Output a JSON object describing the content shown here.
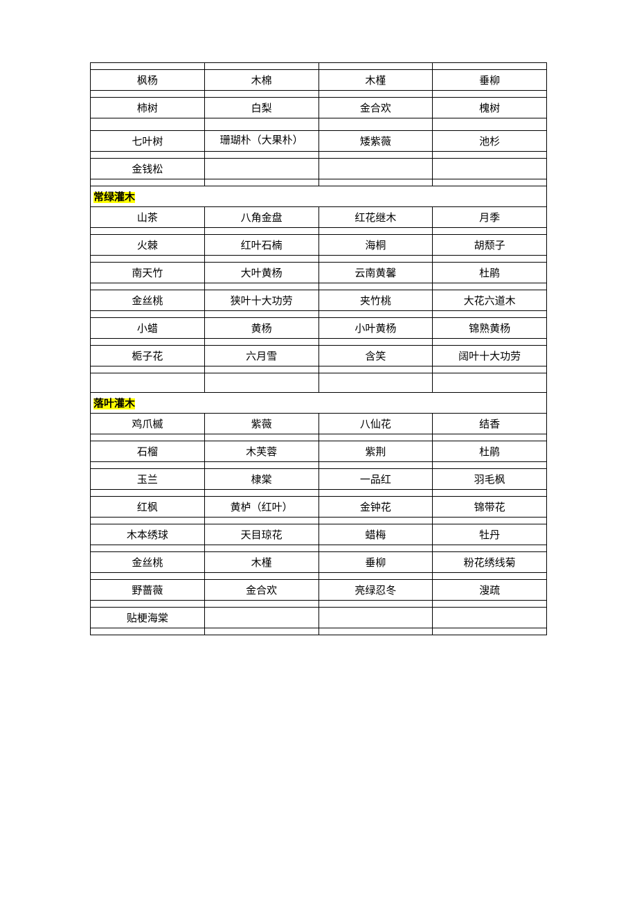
{
  "colors": {
    "border": "#000000",
    "background": "#ffffff",
    "highlight": "#ffff00",
    "text": "#000000"
  },
  "table": {
    "columns": 4,
    "font_size": 15,
    "font_family": "SimSun"
  },
  "sections": [
    {
      "header": null,
      "rows": [
        [
          "枫杨",
          "木棉",
          "木槿",
          "垂柳"
        ],
        [
          "柿树",
          "白梨",
          "金合欢",
          "槐树"
        ],
        [
          "七叶树",
          "珊瑚朴（大果朴）",
          "矮紫薇",
          "池杉"
        ],
        [
          "金钱松",
          "",
          "",
          ""
        ]
      ]
    },
    {
      "header": "常绿灌木",
      "rows": [
        [
          "山茶",
          "八角金盘",
          "红花继木",
          "月季"
        ],
        [
          "火棘",
          "红叶石楠",
          "海桐",
          "胡颓子"
        ],
        [
          "南天竹",
          "大叶黄杨",
          "云南黄馨",
          "杜鹃"
        ],
        [
          "金丝桃",
          "狭叶十大功劳",
          "夹竹桃",
          "大花六道木"
        ],
        [
          "小蜡",
          "黄杨",
          "小叶黄杨",
          "锦熟黄杨"
        ],
        [
          "栀子花",
          "六月雪",
          "含笑",
          "阔叶十大功劳"
        ],
        [
          "",
          "",
          "",
          ""
        ]
      ]
    },
    {
      "header": "落叶灌木",
      "rows": [
        [
          "鸡爪槭",
          "紫薇",
          "八仙花",
          "结香"
        ],
        [
          "石榴",
          "木芙蓉",
          "紫荆",
          "杜鹃"
        ],
        [
          "玉兰",
          "棣棠",
          "一品红",
          "羽毛枫"
        ],
        [
          "红枫",
          "黄栌（红叶）",
          "金钟花",
          "锦带花"
        ],
        [
          "木本绣球",
          "天目琼花",
          "蜡梅",
          "牡丹"
        ],
        [
          "金丝桃",
          "木槿",
          "垂柳",
          "粉花绣线菊"
        ],
        [
          "野蔷薇",
          "金合欢",
          "亮绿忍冬",
          "溲疏"
        ],
        [
          "贴梗海棠",
          "",
          "",
          ""
        ],
        [
          "",
          "",
          "",
          ""
        ]
      ]
    }
  ]
}
